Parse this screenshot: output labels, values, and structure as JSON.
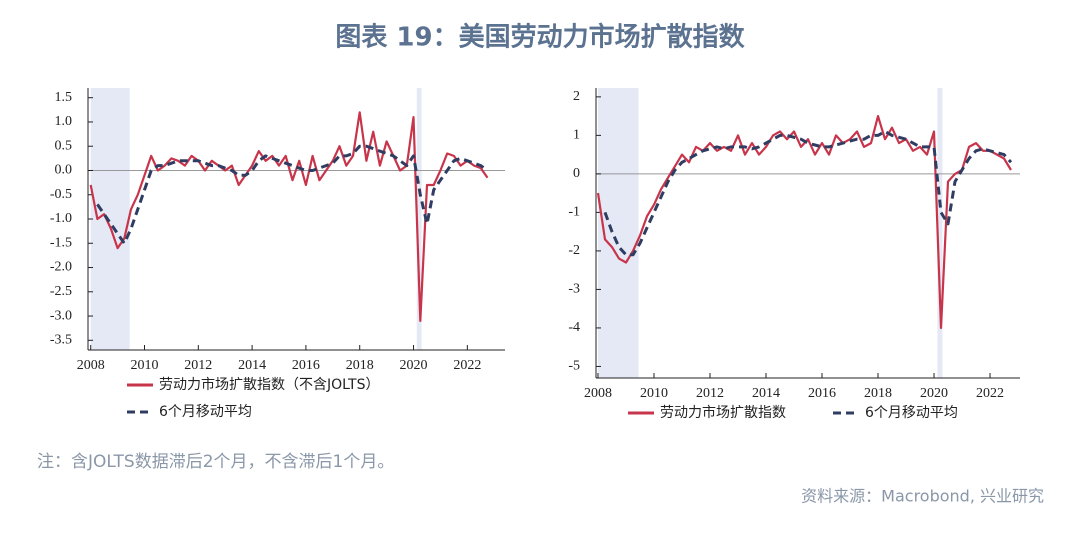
{
  "title": "图表 19：美国劳动力市场扩散指数",
  "note": "注：含JOLTS数据滞后2个月，不含滞后1个月。",
  "source": "资料来源：Macrobond, 兴业研究",
  "chart_data": [
    {
      "type": "line",
      "x": [
        2008,
        2008.25,
        2008.5,
        2008.75,
        2009,
        2009.25,
        2009.5,
        2009.75,
        2010,
        2010.25,
        2010.5,
        2010.75,
        2011,
        2011.25,
        2011.5,
        2011.75,
        2012,
        2012.25,
        2012.5,
        2012.75,
        2013,
        2013.25,
        2013.5,
        2013.75,
        2014,
        2014.25,
        2014.5,
        2014.75,
        2015,
        2015.25,
        2015.5,
        2015.75,
        2016,
        2016.25,
        2016.5,
        2016.75,
        2017,
        2017.25,
        2017.5,
        2017.75,
        2018,
        2018.25,
        2018.5,
        2018.75,
        2019,
        2019.25,
        2019.5,
        2019.75,
        2020,
        2020.25,
        2020.5,
        2020.75,
        2021,
        2021.25,
        2021.5,
        2021.75,
        2022,
        2022.25,
        2022.5,
        2022.75
      ],
      "series": [
        {
          "name": "劳动力市场扩散指数（不含JOLTS）",
          "color": "#c8354b",
          "dashed": false,
          "values": [
            -0.3,
            -1.0,
            -0.9,
            -1.2,
            -1.6,
            -1.4,
            -0.8,
            -0.5,
            -0.1,
            0.3,
            0.0,
            0.1,
            0.25,
            0.2,
            0.1,
            0.3,
            0.2,
            0.0,
            0.2,
            0.1,
            0.0,
            0.1,
            -0.3,
            -0.1,
            0.1,
            0.4,
            0.2,
            0.3,
            0.1,
            0.3,
            -0.2,
            0.2,
            -0.3,
            0.3,
            -0.2,
            0.0,
            0.2,
            0.5,
            0.1,
            0.3,
            1.2,
            0.2,
            0.8,
            0.1,
            0.6,
            0.3,
            0.0,
            0.1,
            1.1,
            -3.1,
            -0.3,
            -0.3,
            0.0,
            0.35,
            0.3,
            0.1,
            0.2,
            0.1,
            0.05,
            -0.15
          ]
        },
        {
          "name": "6个月移动平均",
          "color": "#2f3d62",
          "dashed": true,
          "values": [
            null,
            -0.7,
            -0.9,
            -1.1,
            -1.3,
            -1.5,
            -1.2,
            -0.8,
            -0.4,
            0.0,
            0.1,
            0.1,
            0.15,
            0.2,
            0.2,
            0.2,
            0.2,
            0.15,
            0.1,
            0.1,
            0.05,
            0.0,
            -0.1,
            -0.1,
            0.0,
            0.2,
            0.3,
            0.25,
            0.2,
            0.15,
            0.1,
            0.05,
            0.0,
            0.0,
            0.05,
            0.1,
            0.15,
            0.3,
            0.3,
            0.35,
            0.5,
            0.5,
            0.45,
            0.4,
            0.35,
            0.3,
            0.2,
            0.1,
            0.3,
            -0.5,
            -1.1,
            -0.4,
            -0.2,
            0.0,
            0.2,
            0.25,
            0.2,
            0.15,
            0.1,
            0.0
          ]
        }
      ],
      "shaded_ranges": [
        [
          2008.0,
          2009.45
        ],
        [
          2020.12,
          2020.3
        ]
      ],
      "reference_line": 0,
      "xlim": [
        2007.9,
        2023.4
      ],
      "xticks": [
        2008,
        2010,
        2012,
        2014,
        2016,
        2018,
        2020,
        2022
      ],
      "ylim": [
        -3.7,
        1.7
      ],
      "yticks": [
        1.5,
        {
          "value": 1,
          "label": "1.0"
        },
        0.5,
        {
          "value": 0,
          "label": "0.0"
        },
        -0.5,
        {
          "value": -1,
          "label": "-1.0"
        },
        -1.5,
        {
          "value": -2,
          "label": "-2.0"
        },
        -2.5,
        {
          "value": -3,
          "label": "-3.0"
        },
        -3.5
      ],
      "legend": "below-stacked"
    },
    {
      "type": "line",
      "x": [
        2008,
        2008.25,
        2008.5,
        2008.75,
        2009,
        2009.25,
        2009.5,
        2009.75,
        2010,
        2010.25,
        2010.5,
        2010.75,
        2011,
        2011.25,
        2011.5,
        2011.75,
        2012,
        2012.25,
        2012.5,
        2012.75,
        2013,
        2013.25,
        2013.5,
        2013.75,
        2014,
        2014.25,
        2014.5,
        2014.75,
        2015,
        2015.25,
        2015.5,
        2015.75,
        2016,
        2016.25,
        2016.5,
        2016.75,
        2017,
        2017.25,
        2017.5,
        2017.75,
        2018,
        2018.25,
        2018.5,
        2018.75,
        2019,
        2019.25,
        2019.5,
        2019.75,
        2020,
        2020.25,
        2020.5,
        2020.75,
        2021,
        2021.25,
        2021.5,
        2021.75,
        2022,
        2022.25,
        2022.5,
        2022.75
      ],
      "series": [
        {
          "name": "劳动力市场扩散指数",
          "color": "#c8354b",
          "dashed": false,
          "values": [
            -0.5,
            -1.7,
            -1.9,
            -2.2,
            -2.3,
            -2.0,
            -1.6,
            -1.1,
            -0.8,
            -0.4,
            -0.1,
            0.2,
            0.5,
            0.3,
            0.7,
            0.6,
            0.8,
            0.6,
            0.7,
            0.6,
            1.0,
            0.5,
            0.8,
            0.5,
            0.7,
            1.0,
            1.1,
            0.9,
            1.1,
            0.7,
            0.9,
            0.5,
            0.8,
            0.5,
            1.0,
            0.8,
            0.9,
            1.1,
            0.7,
            0.8,
            1.5,
            0.9,
            1.2,
            0.8,
            0.9,
            0.6,
            0.7,
            0.5,
            1.1,
            -4.0,
            -0.2,
            0.0,
            0.1,
            0.7,
            0.8,
            0.6,
            0.6,
            0.5,
            0.4,
            0.1
          ]
        },
        {
          "name": "6个月移动平均",
          "color": "#2f3d62",
          "dashed": true,
          "values": [
            null,
            -1.0,
            -1.5,
            -1.9,
            -2.1,
            -2.1,
            -1.8,
            -1.4,
            -1.0,
            -0.6,
            -0.2,
            0.1,
            0.3,
            0.4,
            0.5,
            0.6,
            0.65,
            0.7,
            0.65,
            0.7,
            0.7,
            0.7,
            0.65,
            0.7,
            0.8,
            0.9,
            1.0,
            1.0,
            0.95,
            0.9,
            0.8,
            0.75,
            0.7,
            0.7,
            0.75,
            0.8,
            0.85,
            0.9,
            0.9,
            1.0,
            1.0,
            1.1,
            1.0,
            0.95,
            0.9,
            0.8,
            0.7,
            0.7,
            0.7,
            -1.0,
            -1.3,
            -0.2,
            0.1,
            0.4,
            0.6,
            0.65,
            0.6,
            0.55,
            0.5,
            0.3
          ]
        }
      ],
      "shaded_ranges": [
        [
          2008.0,
          2009.45
        ],
        [
          2020.12,
          2020.3
        ]
      ],
      "reference_line": 0,
      "xlim": [
        2007.93,
        2023.07
      ],
      "xticks": [
        2008,
        2010,
        2012,
        2014,
        2016,
        2018,
        2020,
        2022
      ],
      "ylim": [
        -5.3,
        2.23
      ],
      "yticks": [
        2,
        1,
        0,
        -1,
        -2,
        -3,
        -4,
        -5
      ],
      "legend": "below-row"
    }
  ]
}
